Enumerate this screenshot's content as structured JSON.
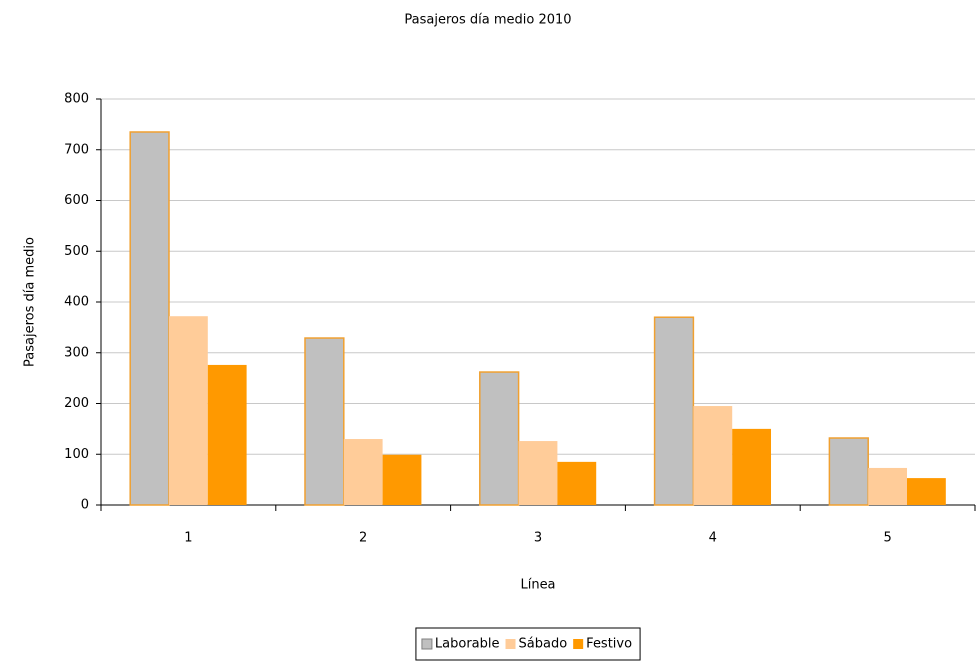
{
  "chart_data": {
    "type": "bar",
    "title": "Pasajeros día medio 2010",
    "xlabel": "Línea",
    "ylabel": "Pasajeros día medio",
    "categories": [
      "1",
      "2",
      "3",
      "4",
      "5"
    ],
    "series": [
      {
        "name": "Laborable",
        "color": "#c0c0c0",
        "edgecolor": "#f0a030",
        "values": [
          735,
          329,
          262,
          370,
          132
        ]
      },
      {
        "name": "Sábado",
        "color": "#ffcc99",
        "values": [
          372,
          130,
          126,
          195,
          73
        ]
      },
      {
        "name": "Festivo",
        "color": "#ff9900",
        "values": [
          276,
          99,
          85,
          150,
          53
        ]
      }
    ],
    "ylim": [
      0,
      800
    ],
    "yticks": [
      0,
      100,
      200,
      300,
      400,
      500,
      600,
      700,
      800
    ],
    "grid": true,
    "legend": "bottom"
  }
}
